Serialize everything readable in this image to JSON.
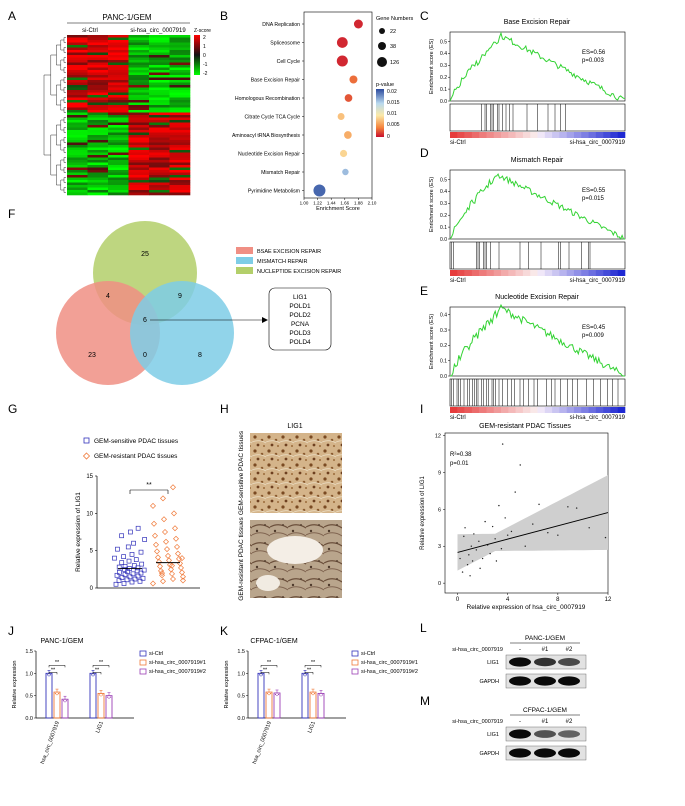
{
  "panels": {
    "A": "A",
    "B": "B",
    "C": "C",
    "D": "D",
    "E": "E",
    "F": "F",
    "G": "G",
    "H": "H",
    "I": "I",
    "J": "J",
    "K": "K",
    "L": "L",
    "M": "M"
  },
  "heatmap": {
    "title": "PANC-1/GEM",
    "group_left": "si-Ctrl",
    "group_right": "si-hsa_circ_0007919",
    "legend_title": "Z-score",
    "legend_ticks": [
      "2",
      "1",
      "0",
      "-1",
      "-2"
    ]
  },
  "bubble": {
    "pathways": [
      "DNA Replication",
      "Spliceosome",
      "Cell Cycle",
      "Base Excision Repair",
      "Homologous Recombination",
      "Citrate Cycle TCA Cycle",
      "Aminoacyl tRNA Biosynthesis",
      "Nucleotide Excision Repair",
      "Mismatch Repair",
      "Pyrimidine Metabolism"
    ],
    "enrichment": [
      1.88,
      1.62,
      1.62,
      1.8,
      1.72,
      1.6,
      1.71,
      1.64,
      1.67,
      1.25
    ],
    "gene_numbers": [
      60,
      90,
      95,
      45,
      40,
      28,
      40,
      32,
      20,
      110
    ],
    "pvalue": [
      0.001,
      0.001,
      0.001,
      0.004,
      0.003,
      0.008,
      0.007,
      0.009,
      0.016,
      0.019
    ],
    "xlabel": "Enrichment Score",
    "xticks": [
      "1.00",
      "1.22",
      "1.44",
      "1.66",
      "1.88",
      "2.10"
    ],
    "size_legend_title": "Gene Numbers",
    "size_legend": [
      "22",
      "38",
      "126"
    ],
    "color_legend_title": "p-value",
    "color_legend": [
      "0.02",
      "0.015",
      "0.01",
      "0.005",
      "0"
    ]
  },
  "gsea": [
    {
      "title": "Base Excision Repair",
      "es": "ES=0.56",
      "p": "p=0.003",
      "ylabel": "Enrichment score (ES)",
      "yticks": [
        "0.5",
        "0.4",
        "0.3",
        "0.2",
        "0.1",
        "0.0"
      ],
      "left": "si-Ctrl",
      "right": "si-hsa_circ_0007919"
    },
    {
      "title": "Mismatch Repair",
      "es": "ES=0.55",
      "p": "p=0.015",
      "ylabel": "Enrichment score (ES)",
      "yticks": [
        "0.5",
        "0.4",
        "0.3",
        "0.2",
        "0.1",
        "0.0"
      ],
      "left": "si-Ctrl",
      "right": "si-hsa_circ_0007919"
    },
    {
      "title": "Nucleotide Excision Repair",
      "es": "ES=0.45",
      "p": "p=0.009",
      "ylabel": "Enrichment score (ES)",
      "yticks": [
        "0.4",
        "0.3",
        "0.2",
        "0.1",
        "0.0"
      ],
      "left": "si-Ctrl",
      "right": "si-hsa_circ_0007919"
    }
  ],
  "venn": {
    "counts": [
      "25",
      "4",
      "9",
      "6",
      "23",
      "0",
      "8"
    ],
    "legend": [
      "BSAE EXCISION REPAIR",
      "MISMATCH REPAIR",
      "NUCLEPTIDE EXCISION REPAIR"
    ],
    "colors": [
      "#f08f84",
      "#7ecde6",
      "#b3cf6a"
    ],
    "genes": [
      "LIG1",
      "POLD1",
      "POLD2",
      "PCNA",
      "POLD3",
      "POLD4"
    ]
  },
  "scatterG": {
    "legend": [
      "GEM-sensitive PDAC tissues",
      "GEM-resistant PDAC tissues"
    ],
    "ylabel": "Relative expression  of LIG1",
    "yticks": [
      "15",
      "10",
      "5",
      "0"
    ],
    "sig": "**"
  },
  "ihc": {
    "title": "LIG1",
    "top": "GEM-sensitive PDAC tissues",
    "bottom": "GEM-resistant PDAC tissues"
  },
  "corr": {
    "title": "GEM-resistant PDAC Tissues",
    "r2": "R²=0.38",
    "p": "p=0.01",
    "xlabel": "Relative expression of hsa_circ_0007919",
    "ylabel": "Relative expression of LIG1",
    "xticks": [
      "0",
      "4",
      "8",
      "12"
    ],
    "yticks": [
      "12",
      "9",
      "6",
      "3",
      "0"
    ]
  },
  "barJ": {
    "title": "PANC-1/GEM",
    "ylabel": "Relative expression",
    "yticks": [
      "1.5",
      "1.0",
      "0.5",
      "0.0"
    ],
    "groups": [
      "hsa_circ_0007919",
      "LIG1"
    ],
    "legend": [
      "si-Ctrl",
      "si-hsa_circ_0007919#1",
      "si-hsa_circ_0007919#2"
    ],
    "values": [
      [
        1.0,
        0.58,
        0.42
      ],
      [
        1.0,
        0.55,
        0.5
      ]
    ],
    "sig": "**"
  },
  "barK": {
    "title": "CFPAC-1/GEM",
    "ylabel": "Relative expression",
    "yticks": [
      "1.5",
      "1.0",
      "0.5",
      "0.0"
    ],
    "groups": [
      "hsa_circ_0007919",
      "LIG1"
    ],
    "legend": [
      "si-Ctrl",
      "si-hsa_circ_0007919#1",
      "si-hsa_circ_0007919#2"
    ],
    "values": [
      [
        1.0,
        0.58,
        0.56
      ],
      [
        1.0,
        0.58,
        0.55
      ]
    ],
    "sig": "**"
  },
  "blots": [
    {
      "title": "PANC-1/GEM",
      "lanes_label": "si-hsa_circ_0007919",
      "lanes": [
        "-",
        "#1",
        "#2"
      ],
      "rows": [
        "LIG1",
        "GAPDH"
      ]
    },
    {
      "title": "CFPAC-1/GEM",
      "lanes_label": "si-hsa_circ_0007919",
      "lanes": [
        "-",
        "#1",
        "#2"
      ],
      "rows": [
        "LIG1",
        "GAPDH"
      ]
    }
  ],
  "colors": {
    "red": "#e8262a",
    "green": "#1ed21e",
    "blue": "#3333bb",
    "orange": "#f07a3a",
    "purple": "#9b3fb5",
    "es_line": "#34d334"
  }
}
